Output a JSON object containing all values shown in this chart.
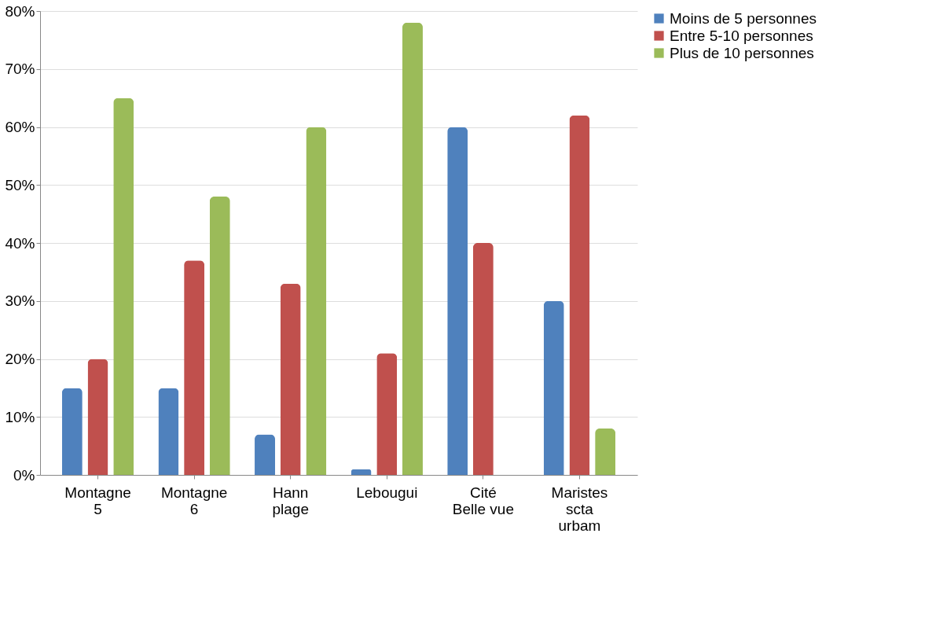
{
  "chart_data": {
    "type": "bar",
    "categories": [
      "Montagne 5",
      "Montagne 6",
      "Hann plage",
      "Lebougui",
      "Cité Belle vue",
      "Maristes scta urbam"
    ],
    "series": [
      {
        "name": "Moins de 5 personnes",
        "color": "#4f81bd",
        "values": [
          15,
          15,
          7,
          1,
          60,
          30
        ]
      },
      {
        "name": "Entre 5-10 personnes",
        "color": "#c0504d",
        "values": [
          20,
          37,
          33,
          21,
          40,
          62
        ]
      },
      {
        "name": "Plus de 10 personnes",
        "color": "#9bbb59",
        "values": [
          65,
          48,
          60,
          78,
          0,
          8
        ]
      }
    ],
    "ylim": [
      0,
      80
    ],
    "yticks": [
      {
        "value": 0,
        "label": "0%"
      },
      {
        "value": 10,
        "label": "10%"
      },
      {
        "value": 20,
        "label": "20%"
      },
      {
        "value": 30,
        "label": "30%"
      },
      {
        "value": 40,
        "label": "40%"
      },
      {
        "value": 50,
        "label": "50%"
      },
      {
        "value": 60,
        "label": "60%"
      },
      {
        "value": 70,
        "label": "70%"
      },
      {
        "value": 80,
        "label": "80%"
      }
    ],
    "grid": "y",
    "legend": "right"
  }
}
